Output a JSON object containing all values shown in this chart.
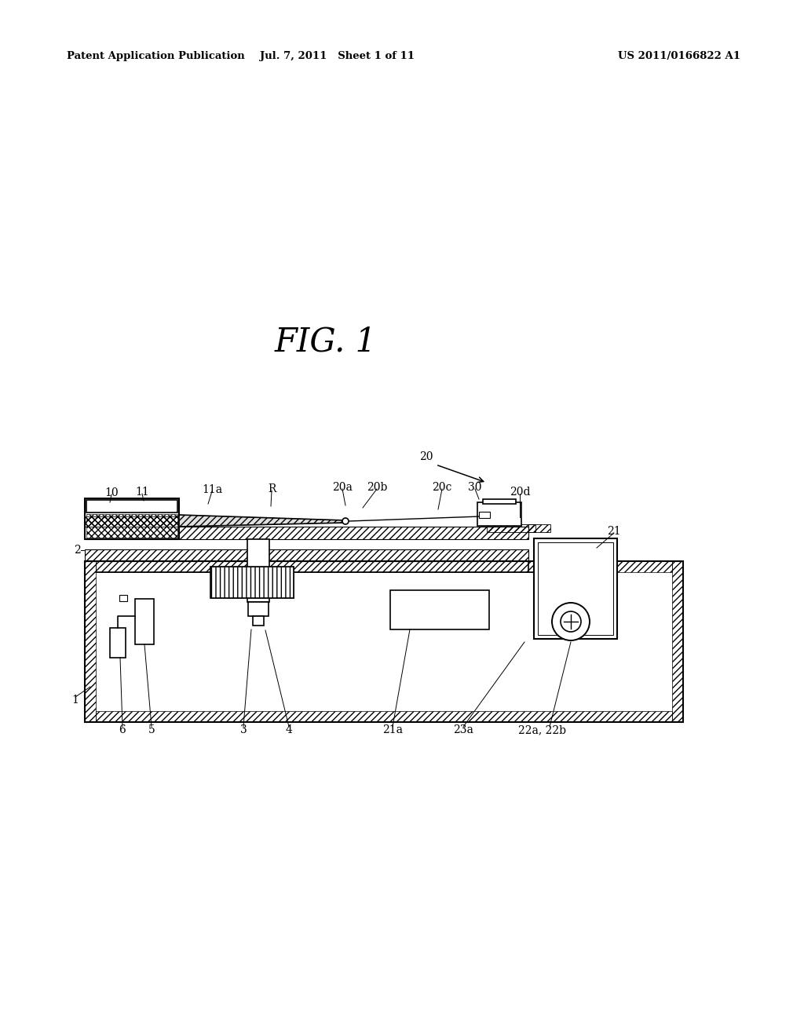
{
  "bg_color": "#ffffff",
  "line_color": "#000000",
  "header_left": "Patent Application Publication",
  "header_center": "Jul. 7, 2011   Sheet 1 of 11",
  "header_right": "US 2011/0166822 A1",
  "fig_label": "FIG. 1"
}
